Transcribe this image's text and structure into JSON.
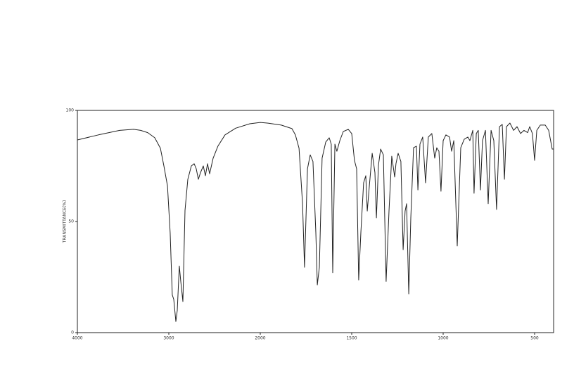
{
  "chart_data": {
    "type": "line",
    "y_label": "TRANSMITTANCE(%)",
    "xlim": [
      4000,
      396
    ],
    "ylim": [
      0,
      100
    ],
    "xticks": [
      4000,
      3000,
      2000,
      1500,
      1000,
      500
    ],
    "yticks": [
      0,
      50,
      100
    ],
    "series": [
      {
        "color": "#222222",
        "x": [
          4000,
          3769,
          3538,
          3385,
          3308,
          3231,
          3154,
          3092,
          3054,
          3015,
          2985,
          2962,
          2946,
          2923,
          2908,
          2885,
          2869,
          2846,
          2823,
          2792,
          2754,
          2723,
          2700,
          2677,
          2654,
          2623,
          2600,
          2577,
          2554,
          2515,
          2462,
          2385,
          2269,
          2115,
          2000,
          1962,
          1885,
          1827,
          1808,
          1788,
          1769,
          1758,
          1742,
          1727,
          1712,
          1696,
          1688,
          1677,
          1662,
          1642,
          1623,
          1612,
          1604,
          1592,
          1581,
          1565,
          1546,
          1519,
          1500,
          1485,
          1473,
          1462,
          1450,
          1435,
          1423,
          1415,
          1404,
          1388,
          1373,
          1365,
          1354,
          1342,
          1327,
          1312,
          1296,
          1281,
          1265,
          1258,
          1246,
          1231,
          1219,
          1208,
          1200,
          1188,
          1177,
          1162,
          1146,
          1138,
          1127,
          1112,
          1096,
          1081,
          1062,
          1046,
          1035,
          1023,
          1012,
          1000,
          985,
          965,
          954,
          942,
          923,
          904,
          885,
          865,
          854,
          838,
          831,
          819,
          808,
          796,
          785,
          769,
          754,
          738,
          723,
          708,
          692,
          677,
          665,
          654,
          635,
          615,
          596,
          577,
          558,
          538,
          527,
          512,
          500,
          488,
          469,
          442,
          423,
          404,
          396
        ],
        "values": [
          86.7,
          89,
          91,
          91.5,
          91,
          90,
          87.7,
          83,
          75,
          66,
          45,
          17,
          15,
          5,
          10,
          30,
          23,
          14,
          55,
          69,
          75,
          76,
          73.7,
          69,
          72,
          75,
          70.6,
          76,
          71.5,
          78.5,
          84,
          89,
          92,
          94,
          94.6,
          94.3,
          93.4,
          91.8,
          89,
          83,
          58,
          29.4,
          73.7,
          80,
          77,
          45,
          21.5,
          29.4,
          78.5,
          85.8,
          87.7,
          84.8,
          27,
          84.8,
          81.6,
          86.4,
          90.5,
          91.5,
          89.6,
          77.5,
          73.7,
          23.7,
          45,
          67.4,
          70.6,
          54.7,
          65.8,
          80.7,
          72,
          51.6,
          75.3,
          82.6,
          80,
          23,
          54.7,
          79.4,
          70,
          76,
          80.7,
          77,
          37.3,
          54.7,
          58,
          17.4,
          51.6,
          83.2,
          83.9,
          64.2,
          84.8,
          88,
          67.4,
          88,
          89.6,
          78.5,
          83.2,
          81.6,
          63.6,
          86.4,
          89,
          88,
          81.6,
          86.4,
          39,
          83.2,
          87,
          88,
          86.4,
          91,
          62.7,
          89.6,
          91,
          64.2,
          86.4,
          91,
          58,
          91,
          86.4,
          55.4,
          92.7,
          93.7,
          69,
          92.7,
          94.3,
          91,
          92.7,
          89.6,
          91,
          90,
          92.7,
          89.6,
          77.5,
          91,
          93.4,
          93.4,
          91,
          82.6,
          82.6
        ]
      }
    ]
  }
}
